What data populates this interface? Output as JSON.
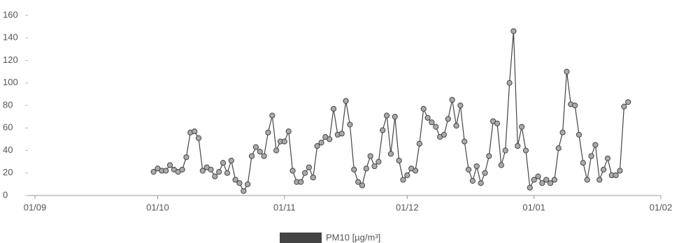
{
  "chart_data": {
    "type": "line",
    "x": [
      "30/09",
      "01/10",
      "02/10",
      "03/10",
      "04/10",
      "05/10",
      "06/10",
      "07/10",
      "08/10",
      "09/10",
      "10/10",
      "11/10",
      "12/10",
      "13/10",
      "14/10",
      "15/10",
      "16/10",
      "17/10",
      "18/10",
      "19/10",
      "20/10",
      "21/10",
      "22/10",
      "23/10",
      "24/10",
      "25/10",
      "26/10",
      "27/10",
      "28/10",
      "29/10",
      "30/10",
      "31/10",
      "01/11",
      "02/11",
      "03/11",
      "04/11",
      "05/11",
      "06/11",
      "07/11",
      "08/11",
      "09/11",
      "10/11",
      "11/11",
      "12/11",
      "13/11",
      "14/11",
      "15/11",
      "16/11",
      "17/11",
      "18/11",
      "19/11",
      "20/11",
      "21/11",
      "22/11",
      "23/11",
      "24/11",
      "25/11",
      "26/11",
      "27/11",
      "28/11",
      "29/11",
      "30/11",
      "01/12",
      "02/12",
      "03/12",
      "04/12",
      "05/12",
      "06/12",
      "07/12",
      "08/12",
      "09/12",
      "10/12",
      "11/12",
      "12/12",
      "13/12",
      "14/12",
      "15/12",
      "16/12",
      "17/12",
      "18/12",
      "19/12",
      "20/12",
      "21/12",
      "22/12",
      "23/12",
      "24/12",
      "25/12",
      "26/12",
      "27/12",
      "28/12",
      "29/12",
      "30/12",
      "31/12",
      "01/01",
      "02/01",
      "03/01",
      "04/01",
      "05/01",
      "06/01",
      "07/01",
      "08/01",
      "09/01",
      "10/01",
      "11/01",
      "12/01",
      "13/01",
      "14/01",
      "15/01",
      "16/01",
      "17/01",
      "18/01",
      "19/01",
      "20/01",
      "21/01",
      "22/01",
      "23/01",
      "24/01"
    ],
    "series": [
      {
        "name": "PM10 [µg/m³]",
        "color": "#444444",
        "values": [
          21,
          24,
          22,
          22,
          27,
          23,
          21,
          23,
          34,
          56,
          57,
          51,
          22,
          25,
          23,
          17,
          21,
          29,
          20,
          31,
          14,
          11,
          4,
          10,
          35,
          43,
          39,
          35,
          56,
          71,
          40,
          48,
          48,
          57,
          22,
          12,
          12,
          20,
          25,
          16,
          44,
          47,
          52,
          50,
          77,
          54,
          55,
          84,
          63,
          23,
          12,
          9,
          24,
          35,
          26,
          30,
          58,
          71,
          37,
          70,
          31,
          14,
          18,
          24,
          22,
          46,
          77,
          69,
          65,
          61,
          52,
          54,
          68,
          85,
          62,
          80,
          48,
          23,
          13,
          26,
          11,
          20,
          35,
          66,
          64,
          27,
          40,
          100,
          146,
          44,
          61,
          40,
          7,
          14,
          17,
          11,
          14,
          11,
          14,
          42,
          56,
          110,
          81,
          80,
          54,
          29,
          14,
          35,
          45,
          14,
          23,
          33,
          18,
          18,
          22,
          79,
          83
        ]
      }
    ],
    "xlim": [
      "01/09",
      "01/02"
    ],
    "xticks": [
      "01/09",
      "01/10",
      "01/11",
      "01/12",
      "01/01",
      "01/02"
    ],
    "ylim": [
      0,
      160
    ],
    "yticks": [
      0,
      20,
      40,
      60,
      80,
      100,
      120,
      140,
      160
    ],
    "legend": "bottom"
  }
}
